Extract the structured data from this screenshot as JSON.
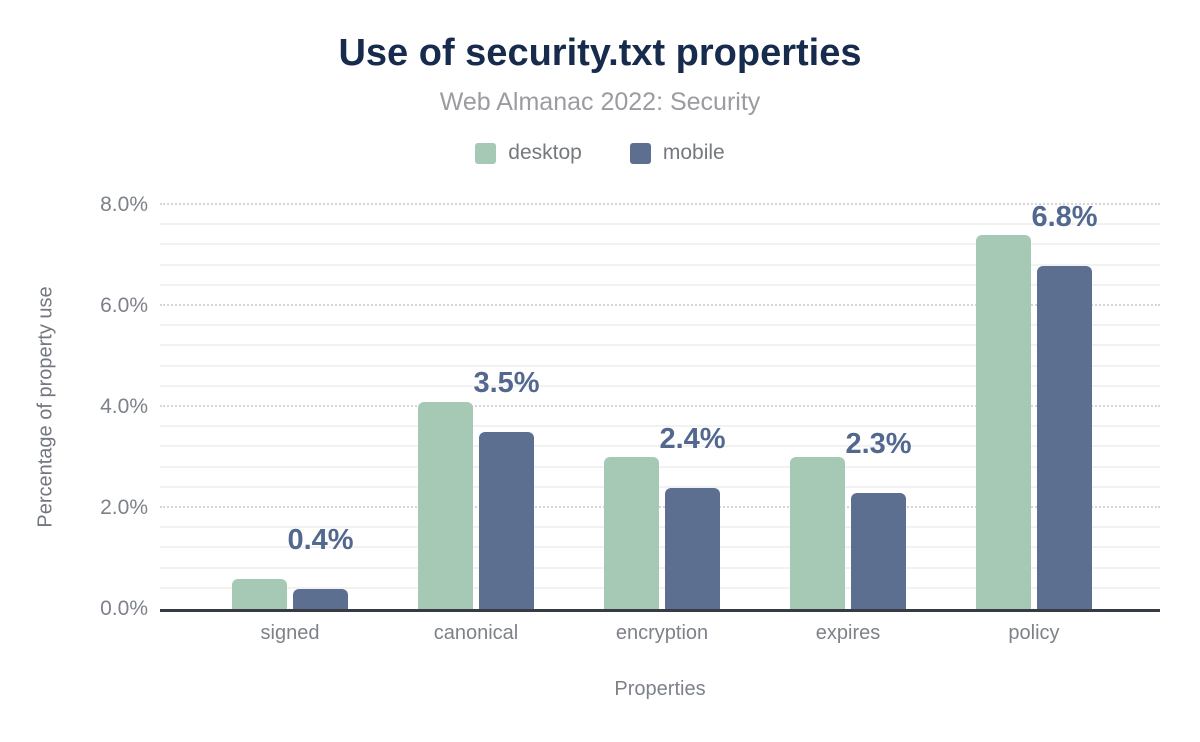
{
  "chart_data": {
    "type": "bar",
    "title": "Use of security.txt properties",
    "subtitle": "Web Almanac 2022: Security",
    "xlabel": "Properties",
    "ylabel": "Percentage of property use",
    "categories": [
      "signed",
      "canonical",
      "encryption",
      "expires",
      "policy"
    ],
    "series": [
      {
        "name": "desktop",
        "color": "#a5c9b4",
        "values": [
          0.6,
          4.1,
          3.0,
          3.0,
          7.4
        ]
      },
      {
        "name": "mobile",
        "color": "#5d6f91",
        "values": [
          0.4,
          3.5,
          2.4,
          2.3,
          6.8
        ]
      }
    ],
    "bar_value_labels": {
      "labeled_series": "mobile",
      "labels": [
        "0.4%",
        "3.5%",
        "2.4%",
        "2.3%",
        "6.8%"
      ]
    },
    "y_ticks": [
      {
        "value": 0,
        "label": "0.0%"
      },
      {
        "value": 2,
        "label": "2.0%"
      },
      {
        "value": 4,
        "label": "4.0%"
      },
      {
        "value": 6,
        "label": "6.0%"
      },
      {
        "value": 8,
        "label": "8.0%"
      }
    ],
    "ylim": [
      0,
      8
    ],
    "grid": {
      "major_step": 2,
      "minor_step": 0.4,
      "major_style": "dotted",
      "minor_style": "solid"
    },
    "legend_position": "top"
  },
  "style": {
    "title_color": "#172b4d",
    "subtitle_color": "#9b9ba1",
    "axis_text_color": "#7d828a",
    "value_label_color": "#52688e",
    "axis_line_color": "#363b44",
    "major_gridline_color": "#d6d6d6",
    "minor_gridline_color": "#f2f2f2",
    "background_color": "#ffffff"
  }
}
